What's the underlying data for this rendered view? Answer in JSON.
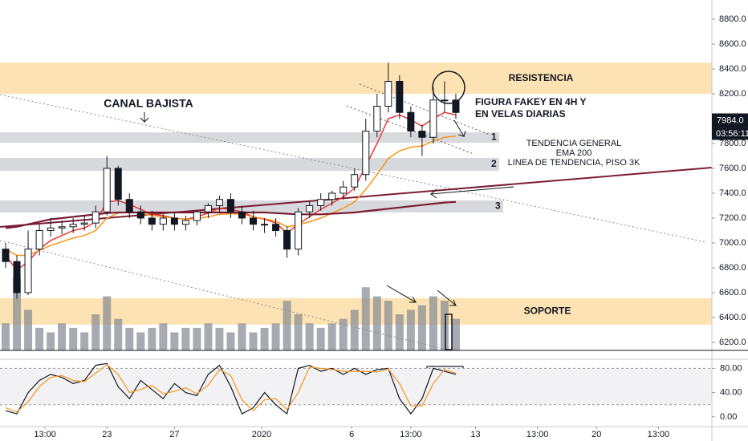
{
  "chart_data": [
    {
      "type": "candlestick",
      "x": [
        2,
        6,
        10,
        14,
        18,
        22,
        26,
        30,
        34,
        38,
        42,
        46,
        50,
        54,
        58,
        62,
        66,
        70,
        74,
        78,
        82,
        86,
        90,
        94,
        98,
        102,
        106,
        110,
        114,
        118,
        122,
        126,
        130,
        134,
        138,
        142,
        146,
        150,
        154,
        158,
        162
      ],
      "open": [
        6950,
        6850,
        6600,
        6950,
        7100,
        7120,
        7130,
        7150,
        7160,
        7250,
        7600,
        7350,
        7250,
        7200,
        7150,
        7200,
        7150,
        7180,
        7250,
        7300,
        7350,
        7250,
        7200,
        7150,
        7150,
        7100,
        6950,
        7250,
        7300,
        7350,
        7400,
        7450,
        7550,
        7900,
        8100,
        8300,
        8050,
        7900,
        7850,
        8150,
        8150
      ],
      "high": [
        7000,
        6900,
        7100,
        7150,
        7200,
        7180,
        7200,
        7220,
        7300,
        7700,
        7620,
        7400,
        7300,
        7260,
        7230,
        7250,
        7220,
        7260,
        7320,
        7380,
        7400,
        7300,
        7260,
        7200,
        7200,
        7130,
        7280,
        7340,
        7400,
        7420,
        7500,
        7600,
        8000,
        8200,
        8450,
        8350,
        8100,
        7950,
        8250,
        8300,
        8200
      ],
      "low": [
        6800,
        6550,
        6580,
        6900,
        7050,
        7070,
        7080,
        7100,
        7120,
        7220,
        7300,
        7200,
        7150,
        7100,
        7100,
        7100,
        7100,
        7140,
        7200,
        7250,
        7200,
        7150,
        7100,
        7080,
        7050,
        6880,
        6900,
        7200,
        7260,
        7300,
        7350,
        7420,
        7500,
        7850,
        8050,
        8000,
        7850,
        7700,
        7800,
        8050,
        8000
      ],
      "close": [
        6850,
        6600,
        6950,
        7100,
        7120,
        7130,
        7150,
        7160,
        7250,
        7600,
        7350,
        7250,
        7200,
        7150,
        7200,
        7150,
        7180,
        7250,
        7300,
        7350,
        7250,
        7200,
        7150,
        7150,
        7100,
        6950,
        7250,
        7300,
        7350,
        7400,
        7450,
        7550,
        7900,
        8100,
        8300,
        8050,
        7900,
        7850,
        8150,
        8150,
        8050
      ],
      "up_color": "#ffffff",
      "down_color": "#131722",
      "overlays": [
        {
          "color": "#e53935",
          "values": [
            6900,
            6780,
            6850,
            6950,
            7020,
            7060,
            7100,
            7120,
            7170,
            7330,
            7340,
            7310,
            7270,
            7230,
            7220,
            7200,
            7190,
            7210,
            7240,
            7280,
            7270,
            7250,
            7210,
            7190,
            7160,
            7080,
            7150,
            7210,
            7270,
            7320,
            7370,
            7440,
            7620,
            7800,
            8000,
            8030,
            7990,
            7940,
            8000,
            8050,
            8030
          ]
        },
        {
          "color": "#f7931a",
          "values": [
            6950,
            6900,
            6900,
            6940,
            6980,
            7010,
            7040,
            7060,
            7100,
            7200,
            7240,
            7250,
            7240,
            7220,
            7210,
            7200,
            7190,
            7195,
            7210,
            7230,
            7235,
            7230,
            7210,
            7195,
            7175,
            7130,
            7145,
            7170,
            7200,
            7240,
            7280,
            7330,
            7430,
            7550,
            7680,
            7740,
            7770,
            7780,
            7820,
            7850,
            7860
          ]
        },
        {
          "color": "#7b1c34",
          "values": [
            7120,
            7130,
            7150,
            7170,
            7190,
            7200,
            7210,
            7220,
            7230,
            7240,
            7245,
            7245,
            7245,
            7245,
            7245,
            7245,
            7245,
            7245,
            7245,
            7245,
            7245,
            7245,
            7245,
            7245,
            7240,
            7235,
            7230,
            7230,
            7230,
            7235,
            7240,
            7245,
            7255,
            7265,
            7275,
            7285,
            7295,
            7305,
            7315,
            7325,
            7330
          ]
        }
      ],
      "volume": [
        30,
        80,
        45,
        25,
        20,
        30,
        25,
        20,
        40,
        60,
        35,
        25,
        20,
        25,
        30,
        20,
        25,
        25,
        30,
        25,
        20,
        30,
        20,
        25,
        30,
        55,
        40,
        30,
        25,
        30,
        35,
        45,
        70,
        60,
        55,
        40,
        45,
        50,
        60,
        55,
        35
      ],
      "volume_color": "#8a8d96",
      "ylim": [
        6135,
        8955
      ],
      "yticks": [
        {
          "value": 6200,
          "label": "6200.0"
        },
        {
          "value": 6400,
          "label": "6400.0"
        },
        {
          "value": 6600,
          "label": "6600.0"
        },
        {
          "value": 6800,
          "label": "6800.0"
        },
        {
          "value": 7000,
          "label": "7000.0"
        },
        {
          "value": 7200,
          "label": "7200.0"
        },
        {
          "value": 7400,
          "label": "7400.0"
        },
        {
          "value": 7600,
          "label": "7600.0"
        },
        {
          "value": 7800,
          "label": "7800.0"
        },
        {
          "value": 8000,
          "label": "8000.0"
        },
        {
          "value": 8200,
          "label": "8200.0"
        },
        {
          "value": 8400,
          "label": "8400.0"
        },
        {
          "value": 8600,
          "label": "8600.0"
        },
        {
          "value": 8800,
          "label": "8800.0"
        }
      ],
      "zones": [
        {
          "label": "RESISTENCIA",
          "range": [
            8200,
            8450
          ],
          "color": "#fde3b3"
        },
        {
          "label": "SOPORTE",
          "range": [
            6342,
            6555
          ],
          "color": "#fde3b3"
        },
        {
          "label": "1",
          "range": [
            7806,
            7890
          ],
          "color": "#d8d9dc"
        },
        {
          "label": "2",
          "range": [
            7580,
            7684
          ],
          "color": "#d8d9dc"
        },
        {
          "label": "3",
          "range": [
            7245,
            7342
          ],
          "color": "#d8d9dc"
        }
      ],
      "last_price": {
        "value": 7984.0,
        "label": "7984.0"
      },
      "countdown": "03:56:11",
      "annotations": [
        "CANAL BAJISTA",
        "FIGURA FAKEY EN 4H Y",
        "EN VELAS DIARIAS",
        "TENDENCIA GENERAL",
        "EMA 200",
        "LINEA DE TENDENCIA, PISO 3K"
      ]
    },
    {
      "type": "line",
      "series": [
        {
          "color": "#131722",
          "values": [
            10,
            5,
            40,
            60,
            70,
            65,
            55,
            60,
            85,
            88,
            50,
            30,
            60,
            45,
            30,
            55,
            40,
            35,
            70,
            85,
            50,
            5,
            15,
            40,
            20,
            5,
            80,
            85,
            75,
            80,
            70,
            80,
            70,
            78,
            80,
            30,
            5,
            30,
            80,
            75,
            70
          ]
        },
        {
          "color": "#f7931a",
          "values": [
            15,
            8,
            25,
            50,
            65,
            68,
            60,
            58,
            72,
            86,
            70,
            40,
            45,
            52,
            38,
            42,
            48,
            38,
            52,
            78,
            68,
            28,
            10,
            28,
            30,
            12,
            40,
            82,
            80,
            78,
            75,
            75,
            75,
            74,
            79,
            55,
            18,
            18,
            55,
            78,
            72
          ]
        }
      ],
      "ylim": [
        -16,
        95
      ],
      "yticks": [
        {
          "value": 0,
          "label": "0.00"
        },
        {
          "value": 40,
          "label": "40.00"
        },
        {
          "value": 80,
          "label": "80.00"
        }
      ],
      "band": [
        20,
        80
      ],
      "xlim": [
        0,
        253
      ],
      "xticks": [
        {
          "value": 16,
          "label": "13:00"
        },
        {
          "value": 38,
          "label": "23"
        },
        {
          "value": 62,
          "label": "27"
        },
        {
          "value": 93,
          "label": "2020"
        },
        {
          "value": 125,
          "label": "6"
        },
        {
          "value": 146,
          "label": "13:00"
        },
        {
          "value": 169,
          "label": "13"
        },
        {
          "value": 191,
          "label": "13:00"
        },
        {
          "value": 212,
          "label": "20"
        },
        {
          "value": 234,
          "label": "13:00"
        }
      ]
    }
  ]
}
